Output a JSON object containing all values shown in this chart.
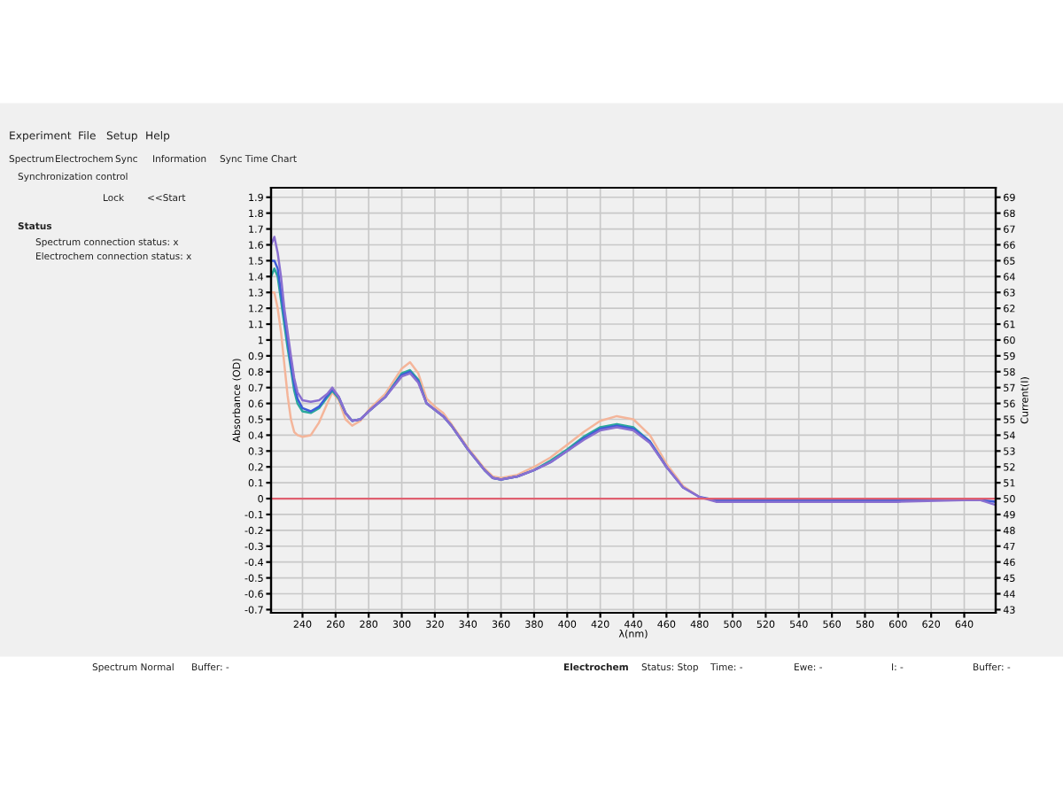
{
  "chart_data": {
    "type": "line",
    "xlabel": "λ(nm)",
    "ylabel": "Absorbance (OD)",
    "y2label": "Current(I)",
    "x": [
      221,
      223,
      225,
      227,
      229,
      231,
      233,
      235,
      237,
      240,
      245,
      250,
      255,
      258,
      262,
      266,
      270,
      275,
      280,
      290,
      300,
      305,
      310,
      315,
      320,
      325,
      330,
      340,
      350,
      355,
      360,
      370,
      380,
      390,
      400,
      410,
      420,
      430,
      440,
      450,
      460,
      470,
      480,
      490,
      500,
      550,
      600,
      640,
      650,
      659
    ],
    "series": [
      {
        "color": "#f4b59a",
        "values": [
          1.3,
          1.3,
          1.2,
          1.05,
          0.85,
          0.65,
          0.5,
          0.42,
          0.4,
          0.39,
          0.4,
          0.48,
          0.6,
          0.67,
          0.62,
          0.5,
          0.46,
          0.49,
          0.56,
          0.66,
          0.82,
          0.86,
          0.79,
          0.63,
          0.58,
          0.54,
          0.47,
          0.32,
          0.19,
          0.14,
          0.13,
          0.15,
          0.2,
          0.26,
          0.34,
          0.42,
          0.49,
          0.52,
          0.5,
          0.4,
          0.22,
          0.08,
          0.01,
          null,
          null,
          null,
          null,
          null,
          null,
          null
        ]
      },
      {
        "color": "#2aa89c",
        "values": [
          1.4,
          1.45,
          1.4,
          1.25,
          1.1,
          0.95,
          0.82,
          0.68,
          0.6,
          0.55,
          0.54,
          0.57,
          0.64,
          0.68,
          0.63,
          0.54,
          0.49,
          0.5,
          0.55,
          0.64,
          0.79,
          0.81,
          0.75,
          0.6,
          0.56,
          0.52,
          0.46,
          0.31,
          0.18,
          0.13,
          0.12,
          0.14,
          0.18,
          0.24,
          0.31,
          0.39,
          0.45,
          0.47,
          0.45,
          0.36,
          0.2,
          null,
          null,
          null,
          null,
          null,
          null,
          null,
          null,
          null
        ]
      },
      {
        "color": "#3d5cd8",
        "values": [
          1.5,
          1.5,
          1.45,
          1.3,
          1.15,
          1.0,
          0.85,
          0.72,
          0.63,
          0.57,
          0.55,
          0.58,
          0.65,
          0.69,
          0.64,
          0.54,
          0.49,
          0.5,
          0.55,
          0.64,
          0.78,
          0.8,
          0.74,
          0.6,
          0.56,
          0.52,
          0.46,
          0.31,
          0.18,
          0.13,
          0.12,
          0.14,
          0.18,
          0.23,
          0.3,
          0.38,
          0.44,
          0.46,
          0.44,
          0.36,
          0.2,
          0.07,
          0.01,
          -0.01,
          -0.01,
          -0.01,
          -0.01,
          -0.01,
          -0.01,
          -0.02
        ]
      },
      {
        "color": "#8a6fd0",
        "values": [
          1.6,
          1.65,
          1.55,
          1.4,
          1.2,
          1.05,
          0.9,
          0.76,
          0.67,
          0.62,
          0.61,
          0.62,
          0.66,
          0.7,
          0.64,
          0.54,
          0.49,
          0.5,
          0.55,
          0.64,
          0.77,
          0.79,
          0.73,
          0.6,
          0.56,
          0.52,
          0.46,
          0.31,
          0.18,
          0.13,
          0.12,
          0.14,
          0.18,
          0.23,
          0.3,
          0.37,
          0.43,
          0.45,
          0.43,
          0.35,
          0.2,
          0.07,
          0.01,
          -0.02,
          -0.02,
          -0.02,
          -0.02,
          -0.01,
          -0.01,
          -0.04
        ]
      }
    ],
    "xlim": [
      221,
      659
    ],
    "xticks": [
      240,
      260,
      280,
      300,
      320,
      340,
      360,
      380,
      400,
      420,
      440,
      460,
      480,
      500,
      520,
      540,
      560,
      580,
      600,
      620,
      640
    ],
    "ylim": [
      -0.72,
      1.96
    ],
    "yticks": [
      -0.7,
      -0.6,
      -0.5,
      -0.4,
      -0.3,
      -0.2,
      -0.1,
      0,
      0.1,
      0.2,
      0.3,
      0.4,
      0.5,
      0.6,
      0.7,
      0.8,
      0.9,
      1,
      1.1,
      1.2,
      1.3,
      1.4,
      1.5,
      1.6,
      1.7,
      1.8,
      1.9
    ],
    "y2lim": [
      42.8,
      69.6
    ],
    "y2ticks": [
      43,
      44,
      45,
      46,
      47,
      48,
      49,
      50,
      51,
      52,
      53,
      54,
      55,
      56,
      57,
      58,
      59,
      60,
      61,
      62,
      63,
      64,
      65,
      66,
      67,
      68,
      69
    ],
    "ref_lines": [
      {
        "axis": "y",
        "value": 0,
        "color": "#e06070"
      }
    ],
    "grid": true,
    "legend": false,
    "marker": "none",
    "line_style": "solid",
    "annotations": [
      "Experiment",
      "File",
      "Setup",
      "Help",
      "Spectrum",
      "Electrochem",
      "Sync",
      "Information",
      "Sync Time Chart",
      "Synchronization control",
      "Lock",
      "<<Start",
      "Status",
      "Spectrum connection status: x",
      "Electrochem connection status: x",
      "Spectrum Normal",
      "Buffer: -",
      "Electrochem",
      "Status: Stop",
      "Time: -",
      "Ewe: -",
      "I: -",
      "Buffer: -"
    ]
  }
}
